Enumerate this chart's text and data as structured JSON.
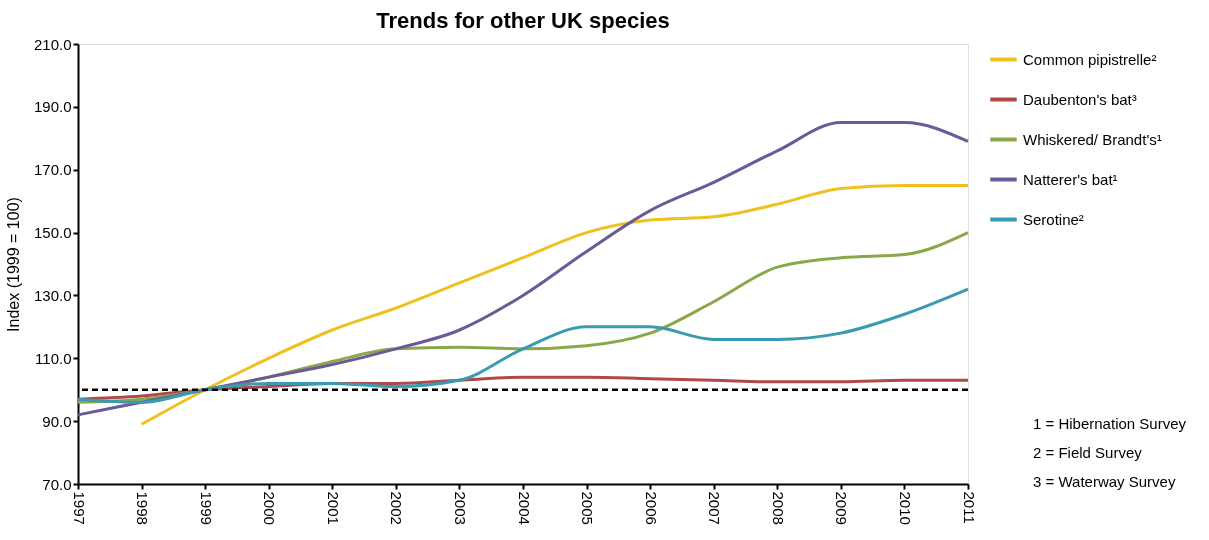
{
  "chart_data": {
    "type": "line",
    "title": "Trends for other UK species",
    "ylabel": "Index (1999 = 100)",
    "categories": [
      "1997",
      "1998",
      "1999",
      "2000",
      "2001",
      "2002",
      "2003",
      "2004",
      "2005",
      "2006",
      "2007",
      "2008",
      "2009",
      "2010",
      "2011"
    ],
    "series": [
      {
        "name": "Common pipistrelle²",
        "color": "#f0c020",
        "values": [
          null,
          89,
          100,
          110,
          119,
          126,
          134,
          142,
          150,
          154,
          155,
          159,
          164,
          165,
          165
        ]
      },
      {
        "name": "Daubenton's bat³",
        "color": "#b04848",
        "values": [
          97,
          98,
          100,
          101,
          102,
          102,
          103,
          104,
          104,
          103.5,
          103,
          102.5,
          102.5,
          103,
          103
        ]
      },
      {
        "name": "Whiskered/ Brandt's¹",
        "color": "#8aa84a",
        "values": [
          96,
          97,
          100,
          104,
          109,
          113,
          113.5,
          113,
          114,
          118,
          128,
          139,
          142,
          143,
          150
        ]
      },
      {
        "name": "Natterer's bat¹",
        "color": "#6a5a9a",
        "values": [
          92,
          96,
          100,
          104,
          108,
          113,
          119,
          130,
          144,
          157,
          166,
          176,
          185,
          185,
          179
        ]
      },
      {
        "name": "Serotine²",
        "color": "#3a9ab0",
        "values": [
          97,
          96,
          100,
          102,
          102,
          101,
          103,
          113,
          120,
          120,
          116,
          116,
          118,
          124,
          132
        ]
      }
    ],
    "ylim": [
      70,
      210
    ],
    "yticks": [
      {
        "value": 70,
        "label": "70.0"
      },
      {
        "value": 90,
        "label": "90.0"
      },
      {
        "value": 110,
        "label": "110.0"
      },
      {
        "value": 130,
        "label": "130.0"
      },
      {
        "value": 150,
        "label": "150.0"
      },
      {
        "value": 170,
        "label": "170.0"
      },
      {
        "value": 190,
        "label": "190.0"
      },
      {
        "value": 210,
        "label": "210.0"
      }
    ],
    "ref_lines": [
      {
        "axis": "y",
        "value": 100,
        "label": null,
        "color": "#000000",
        "line_style": "dashed"
      }
    ],
    "annotations": [
      "1 = Hibernation Survey",
      "2 = Field Survey",
      "3 = Waterway Survey"
    ],
    "grid": false,
    "legend": "top right",
    "marker": "none",
    "line_style": "solid"
  }
}
